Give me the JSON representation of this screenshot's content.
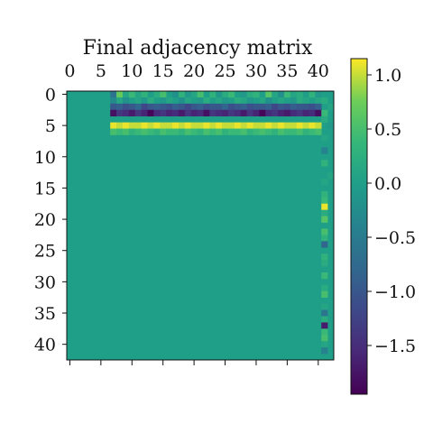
{
  "chart_data": {
    "type": "heatmap",
    "title": "Final adjacency matrix",
    "xlabel": "",
    "ylabel": "",
    "rows": 43,
    "cols": 43,
    "x_ticks": [
      0,
      5,
      10,
      15,
      20,
      25,
      30,
      35,
      40
    ],
    "y_ticks": [
      0,
      5,
      10,
      15,
      20,
      25,
      30,
      35,
      40
    ],
    "colormap": "viridis",
    "vmin": -1.95,
    "vmax": 1.15,
    "colorbar_ticks": [
      1.0,
      0.5,
      0.0,
      -0.5,
      -1.0,
      -1.5
    ],
    "colorbar_tick_labels": [
      "1.0",
      "0.5",
      "0.0",
      "−0.5",
      "−1.0",
      "−1.5"
    ],
    "background_value": 0.0,
    "bands": [
      {
        "row": 0,
        "col_start": 7,
        "col_end": 40,
        "values": [
          -0.6,
          0.7,
          0.1,
          0.4,
          0.1,
          0.3,
          0.0,
          0.2,
          0.5,
          0.0,
          -0.2,
          0.3,
          -0.1,
          0.1,
          0.5,
          0.0,
          0.3,
          -0.1,
          0.2,
          0.4,
          0.0,
          -0.1,
          0.2,
          0.3,
          0.0,
          0.6,
          0.1,
          -0.2,
          0.4,
          0.1,
          0.2,
          0.0,
          0.3,
          -0.1
        ]
      },
      {
        "row": 1,
        "col_start": 7,
        "col_end": 40,
        "values": [
          -0.3,
          0.1,
          -0.2,
          0.0,
          0.1,
          -0.1,
          0.2,
          0.0,
          -0.1,
          0.1,
          0.0,
          -0.2,
          0.1,
          0.0,
          -0.1,
          0.2,
          0.0,
          0.1,
          -0.1,
          0.0,
          0.2,
          0.1,
          -0.1,
          0.0,
          0.1,
          -0.2,
          0.0,
          0.1,
          0.0,
          -0.1,
          0.2,
          0.1,
          0.0,
          0.1
        ]
      },
      {
        "row": 2,
        "col_start": 7,
        "col_end": 40,
        "values": [
          -1.0,
          -0.9,
          -1.1,
          -1.0,
          -0.8,
          -1.2,
          -1.0,
          -0.9,
          -1.0,
          -1.1,
          -0.9,
          -1.0,
          -1.2,
          -1.0,
          -0.9,
          -1.1,
          -1.0,
          -1.0,
          -0.8,
          -1.1,
          -1.0,
          -0.9,
          -1.1,
          -1.0,
          -1.0,
          -0.9,
          -1.2,
          -1.0,
          -1.1,
          -0.9,
          -1.0,
          -1.0,
          -1.1,
          -0.9
        ]
      },
      {
        "row": 3,
        "col_start": 7,
        "col_end": 40,
        "values": [
          -1.8,
          -1.4,
          -1.5,
          -1.7,
          -1.4,
          -1.6,
          -1.9,
          -1.5,
          -1.4,
          -1.6,
          -1.5,
          -1.7,
          -1.4,
          -1.6,
          -1.5,
          -1.8,
          -1.4,
          -1.5,
          -1.6,
          -1.4,
          -1.5,
          -1.7,
          -1.4,
          -1.6,
          -1.9,
          -1.5,
          -1.4,
          -1.6,
          -1.7,
          -1.5,
          -1.4,
          -1.6,
          -1.5,
          -1.8
        ]
      },
      {
        "row": 4,
        "col_start": 7,
        "col_end": 40,
        "values": [
          0.0,
          0.0,
          0.0,
          0.0,
          0.0,
          0.0,
          0.0,
          0.0,
          0.0,
          0.0,
          0.0,
          0.0,
          0.0,
          0.0,
          0.0,
          0.0,
          0.0,
          0.0,
          0.0,
          0.0,
          0.0,
          0.0,
          0.0,
          0.0,
          0.0,
          0.0,
          0.0,
          0.0,
          0.0,
          0.0,
          0.0,
          0.0,
          0.0,
          0.0
        ]
      },
      {
        "row": 5,
        "col_start": 7,
        "col_end": 40,
        "values": [
          1.1,
          1.0,
          1.1,
          1.0,
          1.0,
          1.1,
          1.0,
          1.1,
          1.0,
          1.0,
          1.1,
          1.0,
          1.1,
          1.0,
          1.0,
          1.1,
          1.0,
          1.1,
          1.0,
          1.0,
          1.1,
          1.0,
          1.1,
          1.0,
          1.0,
          1.1,
          1.0,
          1.1,
          1.0,
          1.0,
          1.1,
          1.0,
          1.1,
          1.0
        ]
      },
      {
        "row": 6,
        "col_start": 7,
        "col_end": 40,
        "values": [
          0.5,
          0.4,
          0.5,
          0.3,
          0.4,
          0.5,
          0.4,
          0.3,
          0.5,
          0.4,
          0.4,
          0.3,
          0.5,
          0.4,
          0.3,
          0.5,
          0.4,
          0.5,
          0.3,
          0.4,
          0.4,
          0.5,
          0.3,
          0.4,
          0.5,
          0.4,
          0.3,
          0.5,
          0.4,
          0.4,
          0.5,
          0.3,
          0.4,
          0.5
        ]
      },
      {
        "col": 41,
        "row_start": 0,
        "row_end": 42,
        "values": [
          0.0,
          0.2,
          0.0,
          0.4,
          0.2,
          0.0,
          0.0,
          0.1,
          0.0,
          -0.4,
          0.0,
          0.3,
          0.0,
          0.0,
          0.1,
          0.0,
          0.3,
          0.4,
          1.1,
          0.2,
          0.6,
          0.0,
          0.5,
          0.3,
          -0.8,
          0.0,
          0.3,
          0.2,
          0.0,
          0.4,
          0.0,
          0.2,
          0.5,
          0.0,
          0.1,
          -0.6,
          0.2,
          -1.7,
          0.4,
          0.5,
          0.1,
          -0.4,
          0.0
        ]
      },
      {
        "col": 42,
        "row_start": 0,
        "row_end": 42,
        "values": [
          0.0,
          0.0,
          0.1,
          0.0,
          0.0,
          -0.1,
          0.0,
          0.0,
          0.0,
          0.0,
          0.0,
          0.0,
          0.0,
          0.1,
          0.0,
          0.0,
          0.0,
          0.0,
          0.0,
          0.0,
          0.0,
          0.0,
          0.0,
          0.0,
          0.0,
          0.0,
          0.0,
          0.0,
          0.0,
          0.0,
          0.0,
          0.0,
          0.0,
          0.0,
          0.0,
          0.0,
          0.0,
          0.0,
          0.0,
          0.0,
          0.0,
          0.0,
          0.0
        ]
      }
    ]
  }
}
